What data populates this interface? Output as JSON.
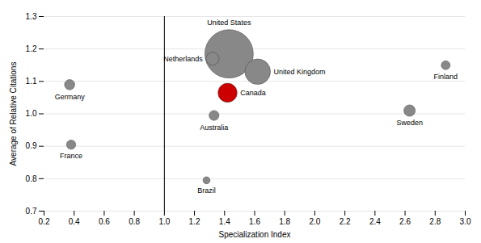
{
  "chart_data": {
    "type": "bubble",
    "labels": [
      "United States",
      "Netherlands",
      "United Kingdom",
      "Canada",
      "Germany",
      "France",
      "Australia",
      "Finland",
      "Sweden",
      "Brazil"
    ],
    "x": [
      1.43,
      1.32,
      1.62,
      1.42,
      0.37,
      0.38,
      1.33,
      2.87,
      2.63,
      1.28
    ],
    "y": [
      1.185,
      1.17,
      1.13,
      1.065,
      1.09,
      0.905,
      0.995,
      1.15,
      1.01,
      0.795
    ],
    "sizes": [
      1800,
      130,
      500,
      280,
      80,
      65,
      75,
      60,
      100,
      38
    ],
    "colors": [
      "#888888",
      "#888888",
      "#888888",
      "#cc0000",
      "#888888",
      "#888888",
      "#888888",
      "#888888",
      "#888888",
      "#888888"
    ],
    "xlabel": "Specialization Index",
    "ylabel": "Average of Relative Citations",
    "xlim": [
      0.2,
      3.0
    ],
    "ylim": [
      0.7,
      1.3
    ],
    "xticks": [
      0.2,
      0.4,
      0.6,
      0.8,
      {
        "value": 1.0,
        "label": "1.0"
      },
      1.2,
      1.4,
      1.6,
      1.8,
      {
        "value": 2.0,
        "label": "2.0"
      },
      2.2,
      2.4,
      2.6,
      2.8,
      {
        "value": 3.0,
        "label": "3.0"
      }
    ],
    "yticks": [
      0.7,
      0.8,
      0.9,
      {
        "value": 1.0,
        "label": "1.0"
      },
      1.1,
      1.2,
      1.3
    ],
    "vline_x": 1.0,
    "grid": "y"
  }
}
